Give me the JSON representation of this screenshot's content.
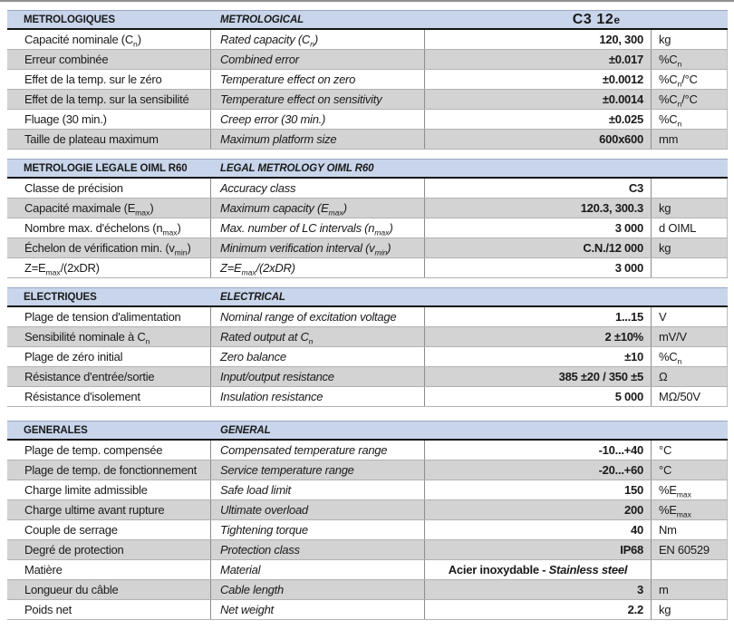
{
  "page": {
    "background": "#ffffff"
  },
  "table": {
    "colors": {
      "header_bg": "#c8d5ea",
      "header_rule": "#141414",
      "row_alt_bg": "#d3d3d3",
      "grid_line": "#8c8c8c",
      "row_line": "#b2b2b2",
      "text": "#1a1a1a"
    },
    "model": {
      "main": "C3 12",
      "suffix": "e"
    },
    "sections": [
      {
        "id": "metrological",
        "header_fr": "MÉTROLOGIQUES",
        "header_en": "METROLOGICAL",
        "show_model": true,
        "rows": [
          {
            "fr": "Capacité nominale (C_{n})",
            "en": "Rated capacity (C_{n})",
            "value": "120, 300",
            "unit": "kg"
          },
          {
            "fr": "Erreur combinée",
            "en": "Combined error",
            "value": "±0.017",
            "unit": "%C_{n}"
          },
          {
            "fr": "Effet de la temp. sur le zéro",
            "en": "Temperature effect on zero",
            "value": "±0.0012",
            "unit": "%C_{n}/°C"
          },
          {
            "fr": "Effet de la temp. sur la sensibilité",
            "en": "Temperature effect on sensitivity",
            "value": "±0.0014",
            "unit": "%C_{n}/°C"
          },
          {
            "fr": "Fluage (30 min.)",
            "en": "Creep error (30 min.)",
            "value": "±0.025",
            "unit": "%C_{n}"
          },
          {
            "fr": "Taille de plateau maximum",
            "en": "Maximum platform size",
            "value": "600x600",
            "unit": "mm"
          }
        ]
      },
      {
        "id": "legal-metrology",
        "header_fr": "MÉTROLOGIE LÉGALE OIML R60",
        "header_en": "LEGAL METROLOGY OIML R60",
        "show_model": false,
        "rows": [
          {
            "fr": "Classe de précision",
            "en": "Accuracy class",
            "value": "C3",
            "unit": ""
          },
          {
            "fr": "Capacité maximale (E_{max})",
            "en": "Maximum capacity (E_{max})",
            "value": "120.3, 300.3",
            "unit": "kg"
          },
          {
            "fr": "Nombre max. d'échelons (n_{max})",
            "en": "Max. number of LC intervals (n_{max})",
            "value": "3 000",
            "unit": "d OIML"
          },
          {
            "fr": "Échelon de vérification min. (v_{min})",
            "en": "Minimum verification interval (v_{min})",
            "value": "C.N./12 000",
            "unit": "kg"
          },
          {
            "fr": "Z=E_{max}/(2xDR)",
            "en": "Z=E_{max}/(2xDR)",
            "value": "3 000",
            "unit": ""
          }
        ]
      },
      {
        "id": "electrical",
        "header_fr": "ÉLECTRIQUES",
        "header_en": "ELECTRICAL",
        "show_model": false,
        "rows": [
          {
            "fr": "Plage de tension d'alimentation",
            "en": "Nominal range of excitation voltage",
            "value": "1...15",
            "unit": "V"
          },
          {
            "fr": "Sensibilité nominale à C_{n}",
            "en": "Rated output at C_{n}",
            "value": "2 ±10%",
            "unit": "mV/V"
          },
          {
            "fr": "Plage de zéro initial",
            "en": "Zero balance",
            "value": "±10",
            "unit": "%C_{n}"
          },
          {
            "fr": "Résistance d'entrée/sortie",
            "en": "Input/output resistance",
            "value": "385 ±20 / 350 ±5",
            "unit": "Ω"
          },
          {
            "fr": "Résistance d'isolement",
            "en": "Insulation resistance",
            "value": "5 000",
            "unit": "MΩ/50V"
          }
        ]
      },
      {
        "id": "general",
        "header_fr": "GÉNÉRALES",
        "header_en": "GENERAL",
        "show_model": false,
        "rows": [
          {
            "fr": "Plage de temp. compensée",
            "en": "Compensated temperature range",
            "value": "-10...+40",
            "unit": "°C"
          },
          {
            "fr": "Plage de temp. de fonctionnement",
            "en": "Service temperature range",
            "value": "-20...+60",
            "unit": "°C"
          },
          {
            "fr": "Charge limite admissible",
            "en": "Safe load limit",
            "value": "150",
            "unit": "%E_{max}"
          },
          {
            "fr": "Charge ultime avant rupture",
            "en": "Ultimate overload",
            "value": "200",
            "unit": "%E_{max}"
          },
          {
            "fr": "Couple de serrage",
            "en": "Tightening torque",
            "value": "40",
            "unit": "Nm"
          },
          {
            "fr": "Degré de protection",
            "en": "Protection class",
            "value": "IP68",
            "unit": "EN 60529"
          },
          {
            "fr": "Matière",
            "en": "Material",
            "value": "Acier inoxydable - *Stainless steel*",
            "unit": "",
            "value_align": "center"
          },
          {
            "fr": "Longueur du câble",
            "en": "Cable length",
            "value": "3",
            "unit": "m"
          },
          {
            "fr": "Poids net",
            "en": "Net weight",
            "value": "2.2",
            "unit": "kg"
          }
        ]
      }
    ]
  }
}
